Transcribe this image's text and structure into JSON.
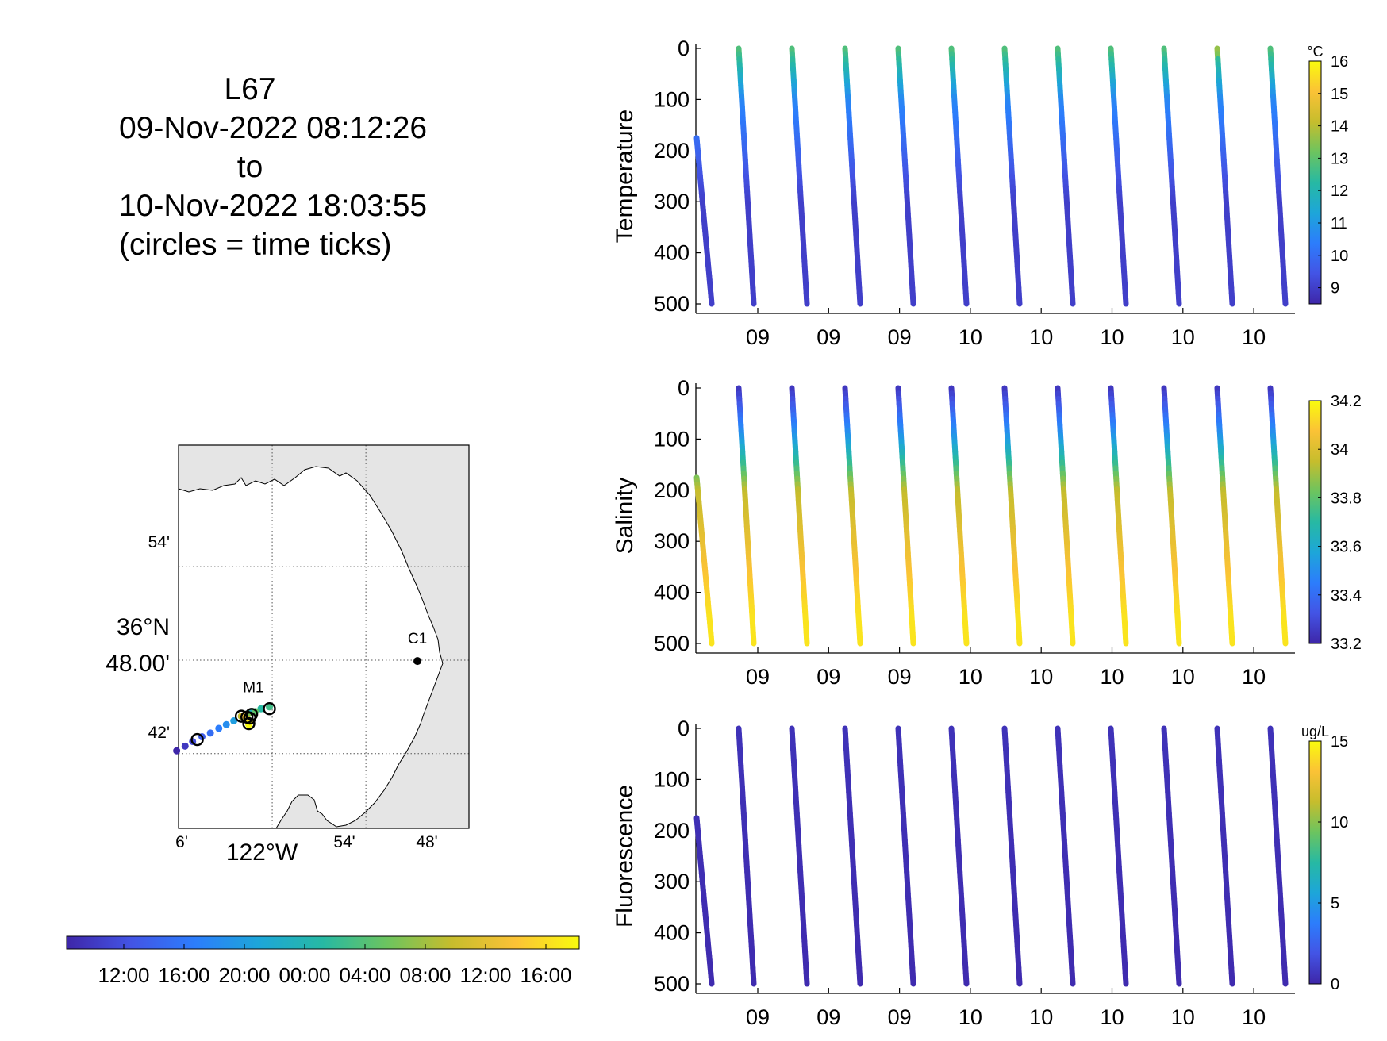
{
  "title": {
    "line1": "L67",
    "line2": "09-Nov-2022 08:12:26",
    "line3": "to",
    "line4": "10-Nov-2022 18:03:55",
    "line5": "(circles = time ticks)"
  },
  "colormap": [
    "#3e26a8",
    "#4354e5",
    "#2c7dfc",
    "#1da6d9",
    "#27b9a3",
    "#6cc45f",
    "#c6bd2d",
    "#fbc236",
    "#f9fb0e"
  ],
  "map": {
    "lat_labels": [
      "54'",
      "42'"
    ],
    "lat_main": [
      "36°N",
      "48.00'"
    ],
    "lon_labels": [
      "6'",
      "54'",
      "48'"
    ],
    "lon_main": "122°W",
    "stations": [
      {
        "name": "C1",
        "lat": 36.799,
        "lon": -121.845
      },
      {
        "name": "M1",
        "lat": 36.747,
        "lon": -122.02
      }
    ],
    "land_color": "#e5e5e5",
    "glider_track": [
      {
        "lat": 36.703,
        "lon": -122.102,
        "t": 0.0
      },
      {
        "lat": 36.708,
        "lon": -122.093,
        "t": 0.05
      },
      {
        "lat": 36.713,
        "lon": -122.085,
        "t": 0.1
      },
      {
        "lat": 36.718,
        "lon": -122.075,
        "t": 0.15
      },
      {
        "lat": 36.722,
        "lon": -122.066,
        "t": 0.2
      },
      {
        "lat": 36.727,
        "lon": -122.057,
        "t": 0.25
      },
      {
        "lat": 36.731,
        "lon": -122.049,
        "t": 0.3
      },
      {
        "lat": 36.735,
        "lon": -122.041,
        "t": 0.35
      },
      {
        "lat": 36.739,
        "lon": -122.032,
        "t": 0.4
      },
      {
        "lat": 36.744,
        "lon": -122.024,
        "t": 0.45
      },
      {
        "lat": 36.748,
        "lon": -122.012,
        "t": 0.5
      },
      {
        "lat": 36.75,
        "lon": -122.003,
        "t": 0.55
      },
      {
        "lat": 36.745,
        "lon": -122.018,
        "t": 0.6
      },
      {
        "lat": 36.742,
        "lon": -122.026,
        "t": 0.65
      },
      {
        "lat": 36.738,
        "lon": -122.03,
        "t": 0.7
      },
      {
        "lat": 36.74,
        "lon": -122.033,
        "t": 0.75
      },
      {
        "lat": 36.737,
        "lon": -122.027,
        "t": 0.8
      },
      {
        "lat": 36.741,
        "lon": -122.03,
        "t": 0.85
      },
      {
        "lat": 36.735,
        "lon": -122.026,
        "t": 0.9
      },
      {
        "lat": 36.733,
        "lon": -122.024,
        "t": 0.95
      },
      {
        "lat": 36.731,
        "lon": -122.025,
        "t": 1.0
      }
    ],
    "time_tick_circles": [
      {
        "lat": 36.715,
        "lon": -122.08
      },
      {
        "lat": 36.748,
        "lon": -122.003
      },
      {
        "lat": 36.74,
        "lon": -122.033
      },
      {
        "lat": 36.739,
        "lon": -122.027
      },
      {
        "lat": 36.742,
        "lon": -122.022
      },
      {
        "lat": 36.738,
        "lon": -122.024
      },
      {
        "lat": 36.732,
        "lon": -122.025
      }
    ]
  },
  "time_colorbar": {
    "tick_labels": [
      "12:00",
      "16:00",
      "20:00",
      "00:00",
      "04:00",
      "08:00",
      "12:00",
      "16:00"
    ]
  },
  "chart_data": [
    {
      "type": "scatter",
      "title": "",
      "ylabel": "Temperature",
      "xlabel": "",
      "ylim": [
        0,
        500
      ],
      "y_reversed": true,
      "y_ticks": [
        0,
        100,
        200,
        300,
        400,
        500
      ],
      "x_tick_labels": [
        "09",
        "09",
        "09",
        "10",
        "10",
        "10",
        "10",
        "10"
      ],
      "colorbar": {
        "unit": "°C",
        "range": [
          8.5,
          16.0
        ],
        "ticks": [
          9,
          10,
          11,
          12,
          13,
          14,
          15,
          16
        ]
      },
      "profile_count": 12,
      "profile_values": {
        "surface": 12.8,
        "mid_100": 10.6,
        "deep": 9.0
      }
    },
    {
      "type": "scatter",
      "title": "",
      "ylabel": "Salinity",
      "xlabel": "",
      "ylim": [
        0,
        500
      ],
      "y_reversed": true,
      "y_ticks": [
        0,
        100,
        200,
        300,
        400,
        500
      ],
      "x_tick_labels": [
        "09",
        "09",
        "09",
        "10",
        "10",
        "10",
        "10",
        "10"
      ],
      "colorbar": {
        "unit": "",
        "range": [
          33.2,
          34.2
        ],
        "ticks": [
          33.2,
          33.4,
          33.6,
          33.8,
          34,
          34.2
        ],
        "tick_labels": [
          "33.2",
          "33.4",
          "33.6",
          "33.8",
          "34",
          "34.2"
        ]
      },
      "profile_count": 12,
      "profile_values": {
        "surface": 33.25,
        "mid_100": 33.55,
        "at_200": 33.95,
        "deep": 34.15
      }
    },
    {
      "type": "scatter",
      "title": "",
      "ylabel": "Fluorescence",
      "xlabel": "",
      "ylim": [
        0,
        500
      ],
      "y_reversed": true,
      "y_ticks": [
        0,
        100,
        200,
        300,
        400,
        500
      ],
      "x_tick_labels": [
        "09",
        "09",
        "09",
        "10",
        "10",
        "10",
        "10",
        "10"
      ],
      "colorbar": {
        "unit": "ug/L",
        "range": [
          0,
          15
        ],
        "ticks": [
          0,
          5,
          10,
          15
        ]
      },
      "profile_count": 12,
      "profile_values": {
        "surface": 0.5,
        "deep": 0.2
      }
    }
  ]
}
